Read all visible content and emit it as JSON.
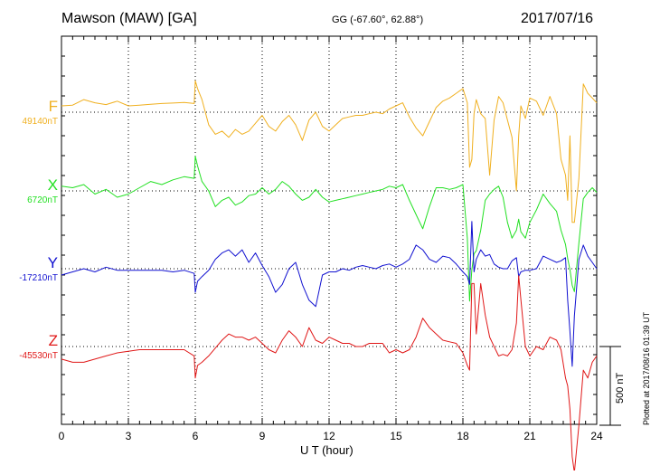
{
  "header": {
    "station": "Mawson (MAW)  [GA]",
    "coords": "GG (-67.60°,  62.88°)",
    "date": "2017/07/16"
  },
  "plotted_note": "Plotted at 2017/08/16 01:39 UT",
  "scale_bar_label": "500 nT",
  "components": [
    {
      "letter": "F",
      "baseline": "49140nT",
      "color": "#f0b020"
    },
    {
      "letter": "X",
      "baseline": "6720nT",
      "color": "#22e022"
    },
    {
      "letter": "Y",
      "baseline": "-17210nT",
      "color": "#1010d0"
    },
    {
      "letter": "Z",
      "baseline": "-45530nT",
      "color": "#e01818"
    }
  ],
  "chart_data": {
    "type": "line",
    "title": "Mawson (MAW)  [GA]",
    "xlabel": "U T (hour)",
    "ylabel": "",
    "xlim": [
      0,
      24
    ],
    "x_ticks": [
      "0",
      "3",
      "6",
      "9",
      "12",
      "15",
      "18",
      "21",
      "24"
    ],
    "y_units": "nT (offset from baseline; 500 nT scale bar)",
    "grid": true,
    "series": [
      {
        "name": "F",
        "baseline": "49140nT",
        "color": "#f0b020",
        "x": [
          0,
          0.5,
          1,
          1.5,
          2,
          2.5,
          3,
          3.5,
          4,
          4.5,
          5,
          5.5,
          5.95,
          6,
          6.1,
          6.3,
          6.6,
          6.9,
          7.2,
          7.5,
          7.8,
          8.1,
          8.4,
          8.7,
          9,
          9.3,
          9.6,
          9.9,
          10.2,
          10.5,
          10.8,
          11.1,
          11.4,
          11.7,
          12,
          12.3,
          12.6,
          12.9,
          13.2,
          13.5,
          13.8,
          14.1,
          14.4,
          14.7,
          15,
          15.3,
          15.6,
          15.9,
          16.2,
          16.5,
          16.8,
          17.1,
          17.4,
          17.7,
          18,
          18.2,
          18.3,
          18.4,
          18.5,
          18.6,
          18.8,
          19,
          19.2,
          19.4,
          19.6,
          19.8,
          20,
          20.2,
          20.4,
          20.5,
          20.6,
          20.8,
          21,
          21.3,
          21.6,
          21.9,
          22.2,
          22.4,
          22.6,
          22.7,
          22.8,
          22.9,
          23,
          23.2,
          23.4,
          23.6,
          23.8,
          24
        ],
        "y": [
          40,
          45,
          80,
          60,
          48,
          70,
          40,
          45,
          50,
          55,
          58,
          62,
          55,
          200,
          150,
          80,
          -80,
          -140,
          -120,
          -160,
          -110,
          -140,
          -120,
          -70,
          -20,
          -90,
          -120,
          -60,
          -20,
          -80,
          -180,
          -50,
          0,
          -90,
          -120,
          -80,
          -40,
          -30,
          -20,
          -20,
          -10,
          0,
          -10,
          20,
          40,
          60,
          -30,
          -100,
          -150,
          -60,
          30,
          70,
          90,
          120,
          150,
          60,
          -350,
          -300,
          -10,
          80,
          -10,
          -40,
          -400,
          -50,
          100,
          60,
          -50,
          -160,
          -500,
          -150,
          40,
          -40,
          90,
          70,
          -20,
          100,
          -10,
          -300,
          -400,
          -560,
          -150,
          -700,
          -700,
          -420,
          180,
          120,
          90,
          60
        ]
      },
      {
        "name": "X",
        "baseline": "6720nT",
        "color": "#22e022",
        "x": [
          0,
          0.5,
          1,
          1.5,
          2,
          2.5,
          3,
          3.5,
          4,
          4.5,
          5,
          5.5,
          5.95,
          6,
          6.1,
          6.3,
          6.6,
          6.9,
          7.2,
          7.5,
          7.8,
          8.1,
          8.4,
          8.7,
          9,
          9.3,
          9.6,
          9.9,
          10.2,
          10.5,
          10.8,
          11.1,
          11.4,
          11.7,
          12,
          12.3,
          12.6,
          12.9,
          13.2,
          13.5,
          13.8,
          14.1,
          14.4,
          14.7,
          15,
          15.3,
          15.6,
          15.9,
          16.2,
          16.5,
          16.8,
          17.1,
          17.4,
          17.7,
          18,
          18.2,
          18.3,
          18.4,
          18.5,
          18.6,
          18.8,
          19,
          19.2,
          19.4,
          19.6,
          19.8,
          20,
          20.2,
          20.4,
          20.5,
          20.6,
          20.8,
          21,
          21.3,
          21.6,
          21.9,
          22.2,
          22.4,
          22.6,
          22.7,
          22.8,
          22.9,
          23,
          23.2,
          23.4,
          23.6,
          23.8,
          24
        ],
        "y": [
          30,
          20,
          40,
          -20,
          10,
          -40,
          -20,
          20,
          60,
          40,
          70,
          90,
          80,
          220,
          160,
          60,
          0,
          -100,
          -60,
          -40,
          -90,
          -70,
          -30,
          -20,
          20,
          -20,
          10,
          60,
          30,
          -20,
          -60,
          -40,
          10,
          -40,
          -70,
          -60,
          -50,
          -40,
          -30,
          -20,
          -10,
          0,
          10,
          30,
          20,
          40,
          -60,
          -150,
          -240,
          -100,
          20,
          20,
          10,
          20,
          40,
          -300,
          -700,
          -500,
          -400,
          -380,
          -250,
          -60,
          -20,
          10,
          30,
          -40,
          -200,
          -300,
          -250,
          -180,
          -260,
          -300,
          -200,
          -120,
          -20,
          -80,
          -130,
          -250,
          -340,
          -430,
          -500,
          -600,
          -640,
          -330,
          -50,
          -10,
          20,
          -10
        ]
      },
      {
        "name": "Y",
        "baseline": "-17210nT",
        "color": "#1010d0",
        "x": [
          0,
          0.5,
          1,
          1.5,
          2,
          2.5,
          3,
          3.5,
          4,
          4.5,
          5,
          5.5,
          5.95,
          6,
          6.1,
          6.3,
          6.6,
          6.9,
          7.2,
          7.5,
          7.8,
          8.1,
          8.4,
          8.7,
          9,
          9.3,
          9.6,
          9.9,
          10.2,
          10.5,
          10.8,
          11.1,
          11.4,
          11.7,
          12,
          12.3,
          12.6,
          12.9,
          13.2,
          13.5,
          13.8,
          14.1,
          14.4,
          14.7,
          15,
          15.3,
          15.6,
          15.9,
          16.2,
          16.5,
          16.8,
          17.1,
          17.4,
          17.7,
          18,
          18.2,
          18.3,
          18.4,
          18.5,
          18.6,
          18.8,
          19,
          19.2,
          19.4,
          19.6,
          19.8,
          20,
          20.2,
          20.4,
          20.5,
          20.6,
          20.8,
          21,
          21.3,
          21.6,
          21.9,
          22.2,
          22.4,
          22.6,
          22.7,
          22.8,
          22.9,
          23,
          23.2,
          23.4,
          23.6,
          23.8,
          24
        ],
        "y": [
          -40,
          -20,
          0,
          -20,
          10,
          -10,
          -10,
          -10,
          -10,
          -10,
          -20,
          -10,
          -30,
          -150,
          -80,
          -50,
          -10,
          60,
          100,
          120,
          80,
          120,
          40,
          100,
          20,
          -50,
          -150,
          -100,
          0,
          40,
          -100,
          -200,
          -240,
          -40,
          -20,
          -20,
          0,
          -10,
          10,
          20,
          10,
          0,
          20,
          30,
          10,
          30,
          60,
          150,
          120,
          60,
          40,
          80,
          70,
          30,
          -20,
          -50,
          -100,
          300,
          -20,
          60,
          120,
          80,
          90,
          30,
          10,
          0,
          0,
          50,
          70,
          -50,
          -20,
          -10,
          -10,
          0,
          80,
          60,
          40,
          50,
          70,
          -200,
          -400,
          -620,
          -300,
          60,
          150,
          80,
          40,
          0
        ]
      },
      {
        "name": "Z",
        "baseline": "-45530nT",
        "color": "#e01818",
        "x": [
          0,
          0.5,
          1,
          1.5,
          2,
          2.5,
          3,
          3.5,
          4,
          4.5,
          5,
          5.5,
          5.95,
          6,
          6.1,
          6.3,
          6.6,
          6.9,
          7.2,
          7.5,
          7.8,
          8.1,
          8.4,
          8.7,
          9,
          9.3,
          9.6,
          9.9,
          10.2,
          10.5,
          10.8,
          11.1,
          11.4,
          11.7,
          12,
          12.3,
          12.6,
          12.9,
          13.2,
          13.5,
          13.8,
          14.1,
          14.4,
          14.7,
          15,
          15.3,
          15.6,
          15.9,
          16.2,
          16.5,
          16.8,
          17.1,
          17.4,
          17.7,
          18,
          18.2,
          18.3,
          18.4,
          18.5,
          18.6,
          18.8,
          19,
          19.2,
          19.4,
          19.6,
          19.8,
          20,
          20.2,
          20.4,
          20.5,
          20.6,
          20.8,
          21,
          21.3,
          21.6,
          21.9,
          22.2,
          22.4,
          22.6,
          22.7,
          22.8,
          22.9,
          23,
          23.2,
          23.4,
          23.6,
          23.8,
          24
        ],
        "y": [
          -80,
          -100,
          -100,
          -80,
          -60,
          -40,
          -30,
          -20,
          -20,
          -20,
          -20,
          -20,
          -60,
          -200,
          -120,
          -100,
          -60,
          -10,
          40,
          80,
          60,
          60,
          40,
          60,
          20,
          -20,
          -40,
          40,
          100,
          60,
          0,
          120,
          40,
          20,
          60,
          40,
          20,
          20,
          0,
          0,
          20,
          20,
          20,
          -40,
          -20,
          -40,
          -20,
          60,
          180,
          120,
          80,
          40,
          30,
          20,
          -40,
          -120,
          -150,
          400,
          400,
          80,
          400,
          200,
          60,
          0,
          -60,
          -50,
          -60,
          -20,
          150,
          450,
          300,
          0,
          -60,
          0,
          -20,
          60,
          40,
          -20,
          -200,
          -250,
          -400,
          -700,
          -800,
          -500,
          -150,
          -200,
          -100,
          -60
        ]
      }
    ]
  }
}
